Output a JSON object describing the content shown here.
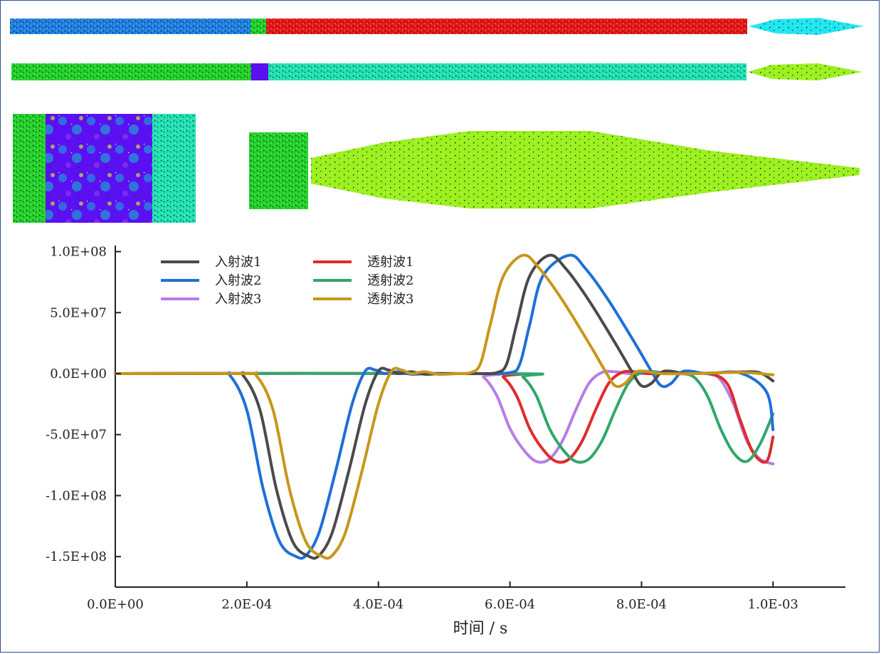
{
  "specimen": {
    "colors": {
      "blue": "#1e7fe0",
      "green": "#22d02a",
      "red": "#e81818",
      "cyan": "#22e6ee",
      "purple": "#5a10f0",
      "teal": "#20e0b0",
      "lime": "#9cf020",
      "dot": "#111111"
    }
  },
  "chart_data": {
    "type": "line",
    "xlabel": "时间 / s",
    "ylabel": "",
    "xlim": [
      0,
      0.00111
    ],
    "ylim": [
      -175000000,
      105000000
    ],
    "x_ticks": [
      {
        "value": 0,
        "label": "0.0E+00"
      },
      {
        "value": 0.0002,
        "label": "2.0E-04"
      },
      {
        "value": 0.0004,
        "label": "4.0E-04"
      },
      {
        "value": 0.0006,
        "label": "6.0E-04"
      },
      {
        "value": 0.0008,
        "label": "8.0E-04"
      },
      {
        "value": 0.001,
        "label": "1.0E-03"
      }
    ],
    "y_ticks": [
      {
        "value": 100000000,
        "label": "1.0E+08"
      },
      {
        "value": 50000000,
        "label": "5.0E+07"
      },
      {
        "value": 0,
        "label": "0.0E+00"
      },
      {
        "value": -50000000,
        "label": "-5.0E+07"
      },
      {
        "value": -100000000,
        "label": "-1.0E+08"
      },
      {
        "value": -150000000,
        "label": "-1.5E+08"
      }
    ],
    "legend_position": "top-left",
    "series": [
      {
        "name": "入射波1",
        "color": "#4a4a4a",
        "x": [
          0,
          0.000175,
          0.000195,
          0.00022,
          0.000245,
          0.00027,
          0.000295,
          0.00031,
          0.00033,
          0.000355,
          0.00038,
          0.0004,
          0.000415,
          0.00043,
          0.00045,
          0.00047,
          0.0005,
          0.00055,
          0.00058,
          0.000595,
          0.00061,
          0.00063,
          0.00066,
          0.000685,
          0.00072,
          0.00076,
          0.000785,
          0.0008,
          0.000815,
          0.00083,
          0.000845,
          0.00087,
          0.00093,
          0.00097,
          0.000985,
          0.001
        ],
        "y": [
          0,
          0,
          -2000000,
          -30000000,
          -95000000,
          -138000000,
          -150000000,
          -149000000,
          -130000000,
          -80000000,
          -25000000,
          2000000,
          3000000,
          0,
          1500000,
          -500000,
          0,
          0,
          800000,
          8000000,
          40000000,
          80000000,
          97000000,
          86000000,
          60000000,
          25000000,
          2000000,
          -10000000,
          -8000000,
          1000000,
          2000000,
          0,
          1000000,
          1500000,
          -500000,
          -6000000
        ]
      },
      {
        "name": "入射波2",
        "color": "#1f6fd8",
        "x": [
          0,
          0.000155,
          0.000175,
          0.0002,
          0.000225,
          0.00025,
          0.000275,
          0.00029,
          0.00031,
          0.000335,
          0.00036,
          0.00038,
          0.000395,
          0.00041,
          0.00043,
          0.00045,
          0.00048,
          0.00055,
          0.0006,
          0.000615,
          0.00063,
          0.00065,
          0.00069,
          0.000715,
          0.00075,
          0.00079,
          0.000815,
          0.00083,
          0.000845,
          0.00086,
          0.000875,
          0.0009,
          0.00095,
          0.00099,
          0.001
        ],
        "y": [
          0,
          0,
          -2000000,
          -30000000,
          -95000000,
          -138000000,
          -150000000,
          -149000000,
          -130000000,
          -80000000,
          -25000000,
          2000000,
          3000000,
          0,
          1500000,
          -500000,
          0,
          0,
          800000,
          8000000,
          40000000,
          80000000,
          97000000,
          86000000,
          60000000,
          25000000,
          2000000,
          -10000000,
          -8000000,
          1000000,
          2000000,
          0,
          500000,
          -15000000,
          -46000000
        ]
      },
      {
        "name": "入射波3",
        "color": "#b57ee6",
        "x": [
          0,
          0.00054,
          0.00056,
          0.00058,
          0.0006,
          0.00062,
          0.00064,
          0.00066,
          0.00068,
          0.0007,
          0.00072,
          0.00074,
          0.00076,
          0.00078,
          0.0008,
          0.00082,
          0.00084,
          0.0009,
          0.00092,
          0.00094,
          0.00096,
          0.00098,
          0.001
        ],
        "y": [
          0,
          0,
          -3000000,
          -18000000,
          -45000000,
          -62000000,
          -72000000,
          -70000000,
          -55000000,
          -30000000,
          -8000000,
          1000000,
          1500000,
          0,
          0,
          0,
          0,
          0,
          -5000000,
          -25000000,
          -55000000,
          -70000000,
          -74000000
        ]
      },
      {
        "name": "透射波1",
        "color": "#e02a2a",
        "x": [
          0,
          0.00057,
          0.00059,
          0.00061,
          0.00063,
          0.00065,
          0.00067,
          0.00069,
          0.00071,
          0.00073,
          0.00075,
          0.00077,
          0.00079,
          0.00081,
          0.00083,
          0.00085,
          0.0009,
          0.00093,
          0.00095,
          0.00097,
          0.00099,
          0.001
        ],
        "y": [
          0,
          0,
          -3000000,
          -18000000,
          -45000000,
          -62000000,
          -72000000,
          -70000000,
          -55000000,
          -30000000,
          -8000000,
          1000000,
          1500000,
          0,
          0,
          0,
          0,
          -8000000,
          -38000000,
          -65000000,
          -72000000,
          -52000000
        ]
      },
      {
        "name": "透射波2",
        "color": "#2fa86a",
        "x": [
          0,
          0.0006,
          0.00062,
          0.00064,
          0.00066,
          0.00068,
          0.0007,
          0.00072,
          0.00074,
          0.00076,
          0.00078,
          0.0008,
          0.00082,
          0.00084,
          0.00086,
          0.00088,
          0.0009,
          0.00092,
          0.00094,
          0.00096,
          0.00098,
          0.001
        ],
        "y": [
          0,
          0,
          -3000000,
          -18000000,
          -45000000,
          -62000000,
          -72000000,
          -70000000,
          -55000000,
          -30000000,
          -8000000,
          1000000,
          1500000,
          0,
          0,
          -3000000,
          -18000000,
          -45000000,
          -65000000,
          -72000000,
          -58000000,
          -33000000
        ]
      },
      {
        "name": "透射波3",
        "color": "#c8961a",
        "x": [
          0,
          0.000195,
          0.000215,
          0.00024,
          0.000265,
          0.00029,
          0.000315,
          0.00033,
          0.00035,
          0.000375,
          0.0004,
          0.00042,
          0.000435,
          0.00045,
          0.00047,
          0.00049,
          0.00052,
          0.00054,
          0.000555,
          0.00057,
          0.00059,
          0.00062,
          0.000645,
          0.00068,
          0.00072,
          0.000745,
          0.00076,
          0.000775,
          0.00079,
          0.000805,
          0.00083,
          0.00088,
          0.00095,
          0.001
        ],
        "y": [
          0,
          0,
          -2000000,
          -30000000,
          -95000000,
          -138000000,
          -150000000,
          -149000000,
          -130000000,
          -80000000,
          -25000000,
          2000000,
          3000000,
          0,
          1500000,
          -500000,
          0,
          800000,
          8000000,
          40000000,
          80000000,
          97000000,
          86000000,
          60000000,
          25000000,
          2000000,
          -10000000,
          -8000000,
          1000000,
          2000000,
          0,
          0,
          1000000,
          -1000000
        ]
      }
    ]
  }
}
